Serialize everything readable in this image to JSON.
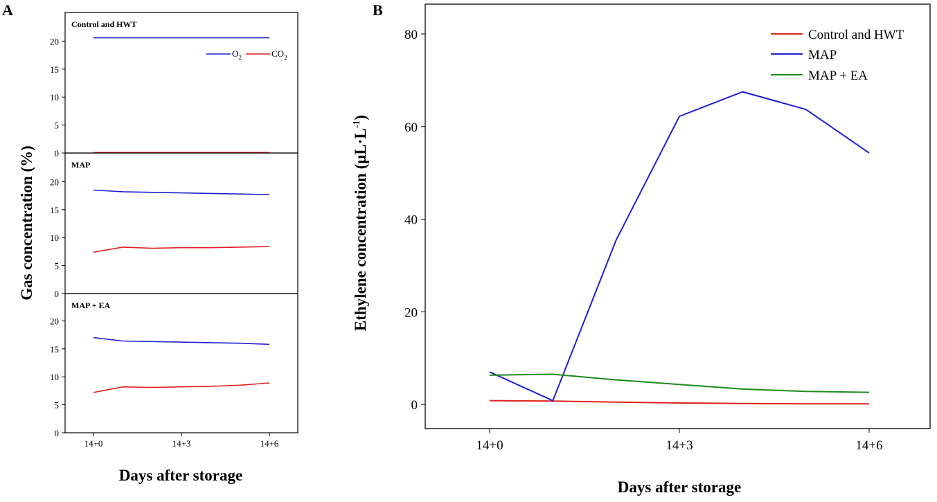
{
  "chart_data": [
    {
      "id": "A",
      "type": "line",
      "panel_label": "A",
      "xlabel": "Days after storage",
      "ylabel": "Gas concentration (%)",
      "x_ticks": [
        "14+0",
        "14+3",
        "14+6"
      ],
      "x": [
        0,
        1,
        2,
        3,
        4,
        5,
        6
      ],
      "legend": [
        {
          "label": "O",
          "sub": "2",
          "color": "#1f1fcf"
        },
        {
          "label": "CO",
          "sub": "2",
          "color": "#e02020"
        }
      ],
      "subplots": [
        {
          "title": "Control and HWT",
          "ylim": [
            0,
            25
          ],
          "yticks": [
            "0",
            "5",
            "10",
            "15",
            "20"
          ],
          "series": [
            {
              "name": "O2",
              "color": "#1f1fcf",
              "values": [
                20.6,
                20.6,
                20.6,
                20.6,
                20.6,
                20.6,
                20.6
              ]
            },
            {
              "name": "CO2",
              "color": "#e02020",
              "values": [
                0.1,
                0.1,
                0.1,
                0.1,
                0.1,
                0.1,
                0.1
              ]
            }
          ]
        },
        {
          "title": "MAP",
          "ylim": [
            0,
            25
          ],
          "yticks": [
            "0",
            "5",
            "10",
            "15",
            "20"
          ],
          "series": [
            {
              "name": "O2",
              "color": "#1f1fcf",
              "values": [
                18.5,
                18.2,
                18.1,
                18.0,
                17.9,
                17.8,
                17.7
              ]
            },
            {
              "name": "CO2",
              "color": "#e02020",
              "values": [
                7.4,
                8.3,
                8.1,
                8.2,
                8.2,
                8.3,
                8.4
              ]
            }
          ]
        },
        {
          "title": "MAP + EA",
          "ylim": [
            0,
            25
          ],
          "yticks": [
            "0",
            "5",
            "10",
            "15",
            "20"
          ],
          "series": [
            {
              "name": "O2",
              "color": "#1f1fcf",
              "values": [
                17.0,
                16.4,
                16.3,
                16.2,
                16.1,
                16.0,
                15.8
              ]
            },
            {
              "name": "CO2",
              "color": "#e02020",
              "values": [
                7.2,
                8.2,
                8.1,
                8.2,
                8.3,
                8.5,
                8.9
              ]
            }
          ]
        }
      ]
    },
    {
      "id": "B",
      "type": "line",
      "panel_label": "B",
      "xlabel": "Days after storage",
      "ylabel": "Ethylene concentration (μL·L",
      "ylabel_sup": "-1",
      "ylabel_end": ")",
      "x_ticks": [
        "14+0",
        "14+3",
        "14+6"
      ],
      "x": [
        0,
        1,
        2,
        3,
        4,
        5,
        6
      ],
      "ylim": [
        -5,
        85
      ],
      "yticks": [
        "0",
        "20",
        "40",
        "60",
        "80"
      ],
      "series": [
        {
          "name": "Control and HWT",
          "color": "#e02020",
          "values": [
            0.8,
            0.7,
            0.5,
            0.3,
            0.2,
            0.1,
            0.1
          ]
        },
        {
          "name": "MAP",
          "color": "#1f1fcf",
          "values": [
            7.0,
            0.8,
            35.5,
            62.2,
            67.5,
            63.7,
            54.3
          ]
        },
        {
          "name": "MAP + EA",
          "color": "#1a8c1a",
          "values": [
            6.3,
            6.5,
            5.3,
            4.3,
            3.3,
            2.8,
            2.6
          ]
        }
      ]
    }
  ]
}
